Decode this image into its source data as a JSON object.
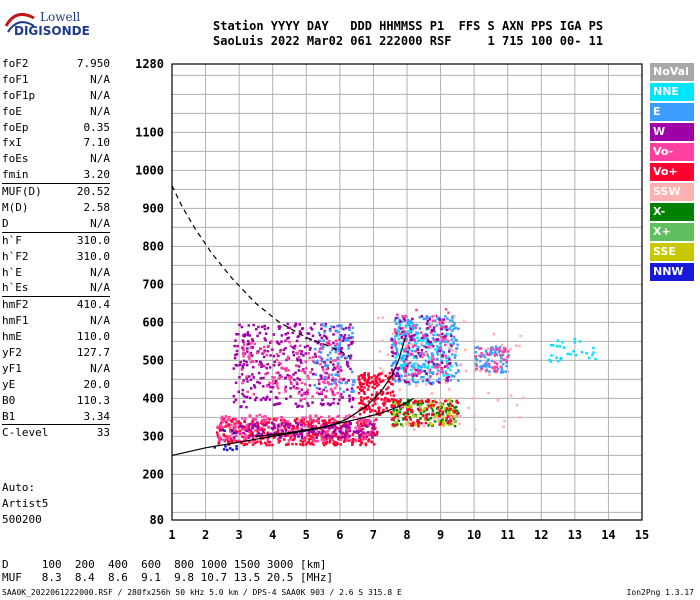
{
  "logo": {
    "line1": "Lowell",
    "line2": "DIGISONDE"
  },
  "header": {
    "line1": "Station YYYY DAY   DDD HHMMSS P1  FFS S AXN PPS IGA PS",
    "line2": "SaoLuis 2022 Mar02 061 222000 RSF     1 715 100 00- 11"
  },
  "params": [
    {
      "name": "foF2",
      "value": "7.950"
    },
    {
      "name": "foF1",
      "value": "N/A"
    },
    {
      "name": "foF1p",
      "value": "N/A"
    },
    {
      "name": "foE",
      "value": "N/A"
    },
    {
      "name": "foEp",
      "value": "0.35"
    },
    {
      "name": "fxI",
      "value": "7.10"
    },
    {
      "name": "foEs",
      "value": "N/A"
    },
    {
      "name": "fmin",
      "value": "3.20"
    },
    {
      "name": "MUF(D)",
      "value": "20.52",
      "sep": true
    },
    {
      "name": "M(D)",
      "value": "2.58"
    },
    {
      "name": "D",
      "value": "N/A"
    },
    {
      "name": "h`F",
      "value": "310.0",
      "sep": true
    },
    {
      "name": "h`F2",
      "value": "310.0"
    },
    {
      "name": "h`E",
      "value": "N/A"
    },
    {
      "name": "h`Es",
      "value": "N/A"
    },
    {
      "name": "hmF2",
      "value": "410.4",
      "sep": true
    },
    {
      "name": "hmF1",
      "value": "N/A"
    },
    {
      "name": "hmE",
      "value": "110.0"
    },
    {
      "name": "yF2",
      "value": "127.7"
    },
    {
      "name": "yF1",
      "value": "N/A"
    },
    {
      "name": "yE",
      "value": "20.0"
    },
    {
      "name": "B0",
      "value": "110.3"
    },
    {
      "name": "B1",
      "value": "3.34"
    },
    {
      "name": "C-level",
      "value": "33",
      "sep": true
    }
  ],
  "auto": {
    "line1": "Auto:",
    "line2": "Artist5",
    "line3": "500200"
  },
  "legend": [
    {
      "label": "NoVal",
      "color": "#a8a8a8"
    },
    {
      "label": "NNE",
      "color": "#00e5ff"
    },
    {
      "label": "E",
      "color": "#3d9cff"
    },
    {
      "label": "W",
      "color": "#a000a8"
    },
    {
      "label": "Vo-",
      "color": "#ff40a0"
    },
    {
      "label": "Vo+",
      "color": "#ff0030"
    },
    {
      "label": "SSW",
      "color": "#ffb0b0"
    },
    {
      "label": "X-",
      "color": "#008000"
    },
    {
      "label": "X+",
      "color": "#60c060"
    },
    {
      "label": "SSE",
      "color": "#c8c800"
    },
    {
      "label": "NNW",
      "color": "#1818d8"
    }
  ],
  "chart_data": {
    "type": "scatter",
    "xlim": [
      1,
      15
    ],
    "ylim": [
      80,
      1280
    ],
    "x_ticks": [
      1,
      2,
      3,
      4,
      5,
      6,
      7,
      8,
      9,
      10,
      11,
      12,
      13,
      14,
      15
    ],
    "y_ticks": [
      80,
      200,
      300,
      400,
      500,
      600,
      700,
      800,
      900,
      1000,
      1100,
      1280
    ],
    "grid": true,
    "clusters": [
      {
        "color": "#ff0030",
        "x": [
          2.3,
          7.1
        ],
        "y": [
          280,
          350
        ],
        "n": 420
      },
      {
        "color": "#ff40a0",
        "x": [
          2.3,
          7.0
        ],
        "y": [
          290,
          360
        ],
        "n": 260
      },
      {
        "color": "#a000a8",
        "x": [
          2.8,
          7.0
        ],
        "y": [
          300,
          340
        ],
        "n": 150
      },
      {
        "color": "#a000a8",
        "x": [
          2.8,
          6.4
        ],
        "y": [
          380,
          600
        ],
        "n": 380
      },
      {
        "color": "#ff40a0",
        "x": [
          3.0,
          6.0
        ],
        "y": [
          400,
          560
        ],
        "n": 140
      },
      {
        "color": "#3d9cff",
        "x": [
          5.2,
          6.4
        ],
        "y": [
          420,
          600
        ],
        "n": 80
      },
      {
        "color": "#ff0030",
        "x": [
          6.5,
          7.6
        ],
        "y": [
          360,
          470
        ],
        "n": 160
      },
      {
        "color": "#3d9cff",
        "x": [
          7.5,
          9.5
        ],
        "y": [
          440,
          620
        ],
        "n": 260
      },
      {
        "color": "#00e5ff",
        "x": [
          7.6,
          9.3
        ],
        "y": [
          460,
          600
        ],
        "n": 110
      },
      {
        "color": "#a000a8",
        "x": [
          7.5,
          9.3
        ],
        "y": [
          440,
          620
        ],
        "n": 120
      },
      {
        "color": "#ff40a0",
        "x": [
          7.6,
          9.2
        ],
        "y": [
          460,
          640
        ],
        "n": 80
      },
      {
        "color": "#008000",
        "x": [
          7.5,
          9.5
        ],
        "y": [
          330,
          400
        ],
        "n": 120
      },
      {
        "color": "#c8c800",
        "x": [
          7.5,
          9.5
        ],
        "y": [
          330,
          400
        ],
        "n": 80
      },
      {
        "color": "#ff0030",
        "x": [
          7.5,
          9.5
        ],
        "y": [
          330,
          400
        ],
        "n": 90
      },
      {
        "color": "#ffb0b0",
        "x": [
          7.0,
          11.5
        ],
        "y": [
          320,
          620
        ],
        "n": 80
      },
      {
        "color": "#3d9cff",
        "x": [
          10.0,
          11.0
        ],
        "y": [
          470,
          540
        ],
        "n": 70
      },
      {
        "color": "#ff40a0",
        "x": [
          10.0,
          11.0
        ],
        "y": [
          470,
          540
        ],
        "n": 40
      },
      {
        "color": "#00e5ff",
        "x": [
          12.2,
          13.6
        ],
        "y": [
          500,
          560
        ],
        "n": 28
      },
      {
        "color": "#1818d8",
        "x": [
          2.2,
          3.0
        ],
        "y": [
          260,
          320
        ],
        "n": 12
      }
    ],
    "solid_trace": {
      "color": "#000000",
      "x": [
        1.0,
        2.0,
        3.0,
        4.0,
        5.0,
        5.6,
        6.2,
        6.8,
        7.2,
        7.55,
        7.75,
        7.95
      ],
      "y": [
        250,
        270,
        285,
        300,
        315,
        325,
        345,
        380,
        415,
        460,
        500,
        560
      ]
    },
    "solid_trace2": {
      "color": "#000000",
      "x": [
        3.5,
        4.5,
        5.5,
        6.5,
        7.2,
        7.8,
        8.2
      ],
      "y": [
        300,
        310,
        325,
        345,
        360,
        380,
        400
      ]
    },
    "dashed_trace": {
      "color": "#000000",
      "x": [
        1.0,
        1.3,
        1.7,
        2.2,
        2.8,
        3.5,
        4.2,
        5.0,
        5.6,
        6.0,
        6.3
      ],
      "y": [
        960,
        905,
        845,
        780,
        715,
        650,
        600,
        560,
        540,
        525,
        510
      ]
    }
  },
  "footer": {
    "line1": "D     100  200  400  600  800 1000 1500 3000 [km]",
    "line2": "MUF   8.3  8.4  8.6  9.1  9.8 10.7 13.5 20.5 [MHz]",
    "bottom": "SAA0K_2022061222000.RSF / 280fx256h 50 kHz 5.0 km / DPS-4 SAA0K 903 / 2.6 S 315.8 E",
    "version": "Ion2Png 1.3.17"
  }
}
